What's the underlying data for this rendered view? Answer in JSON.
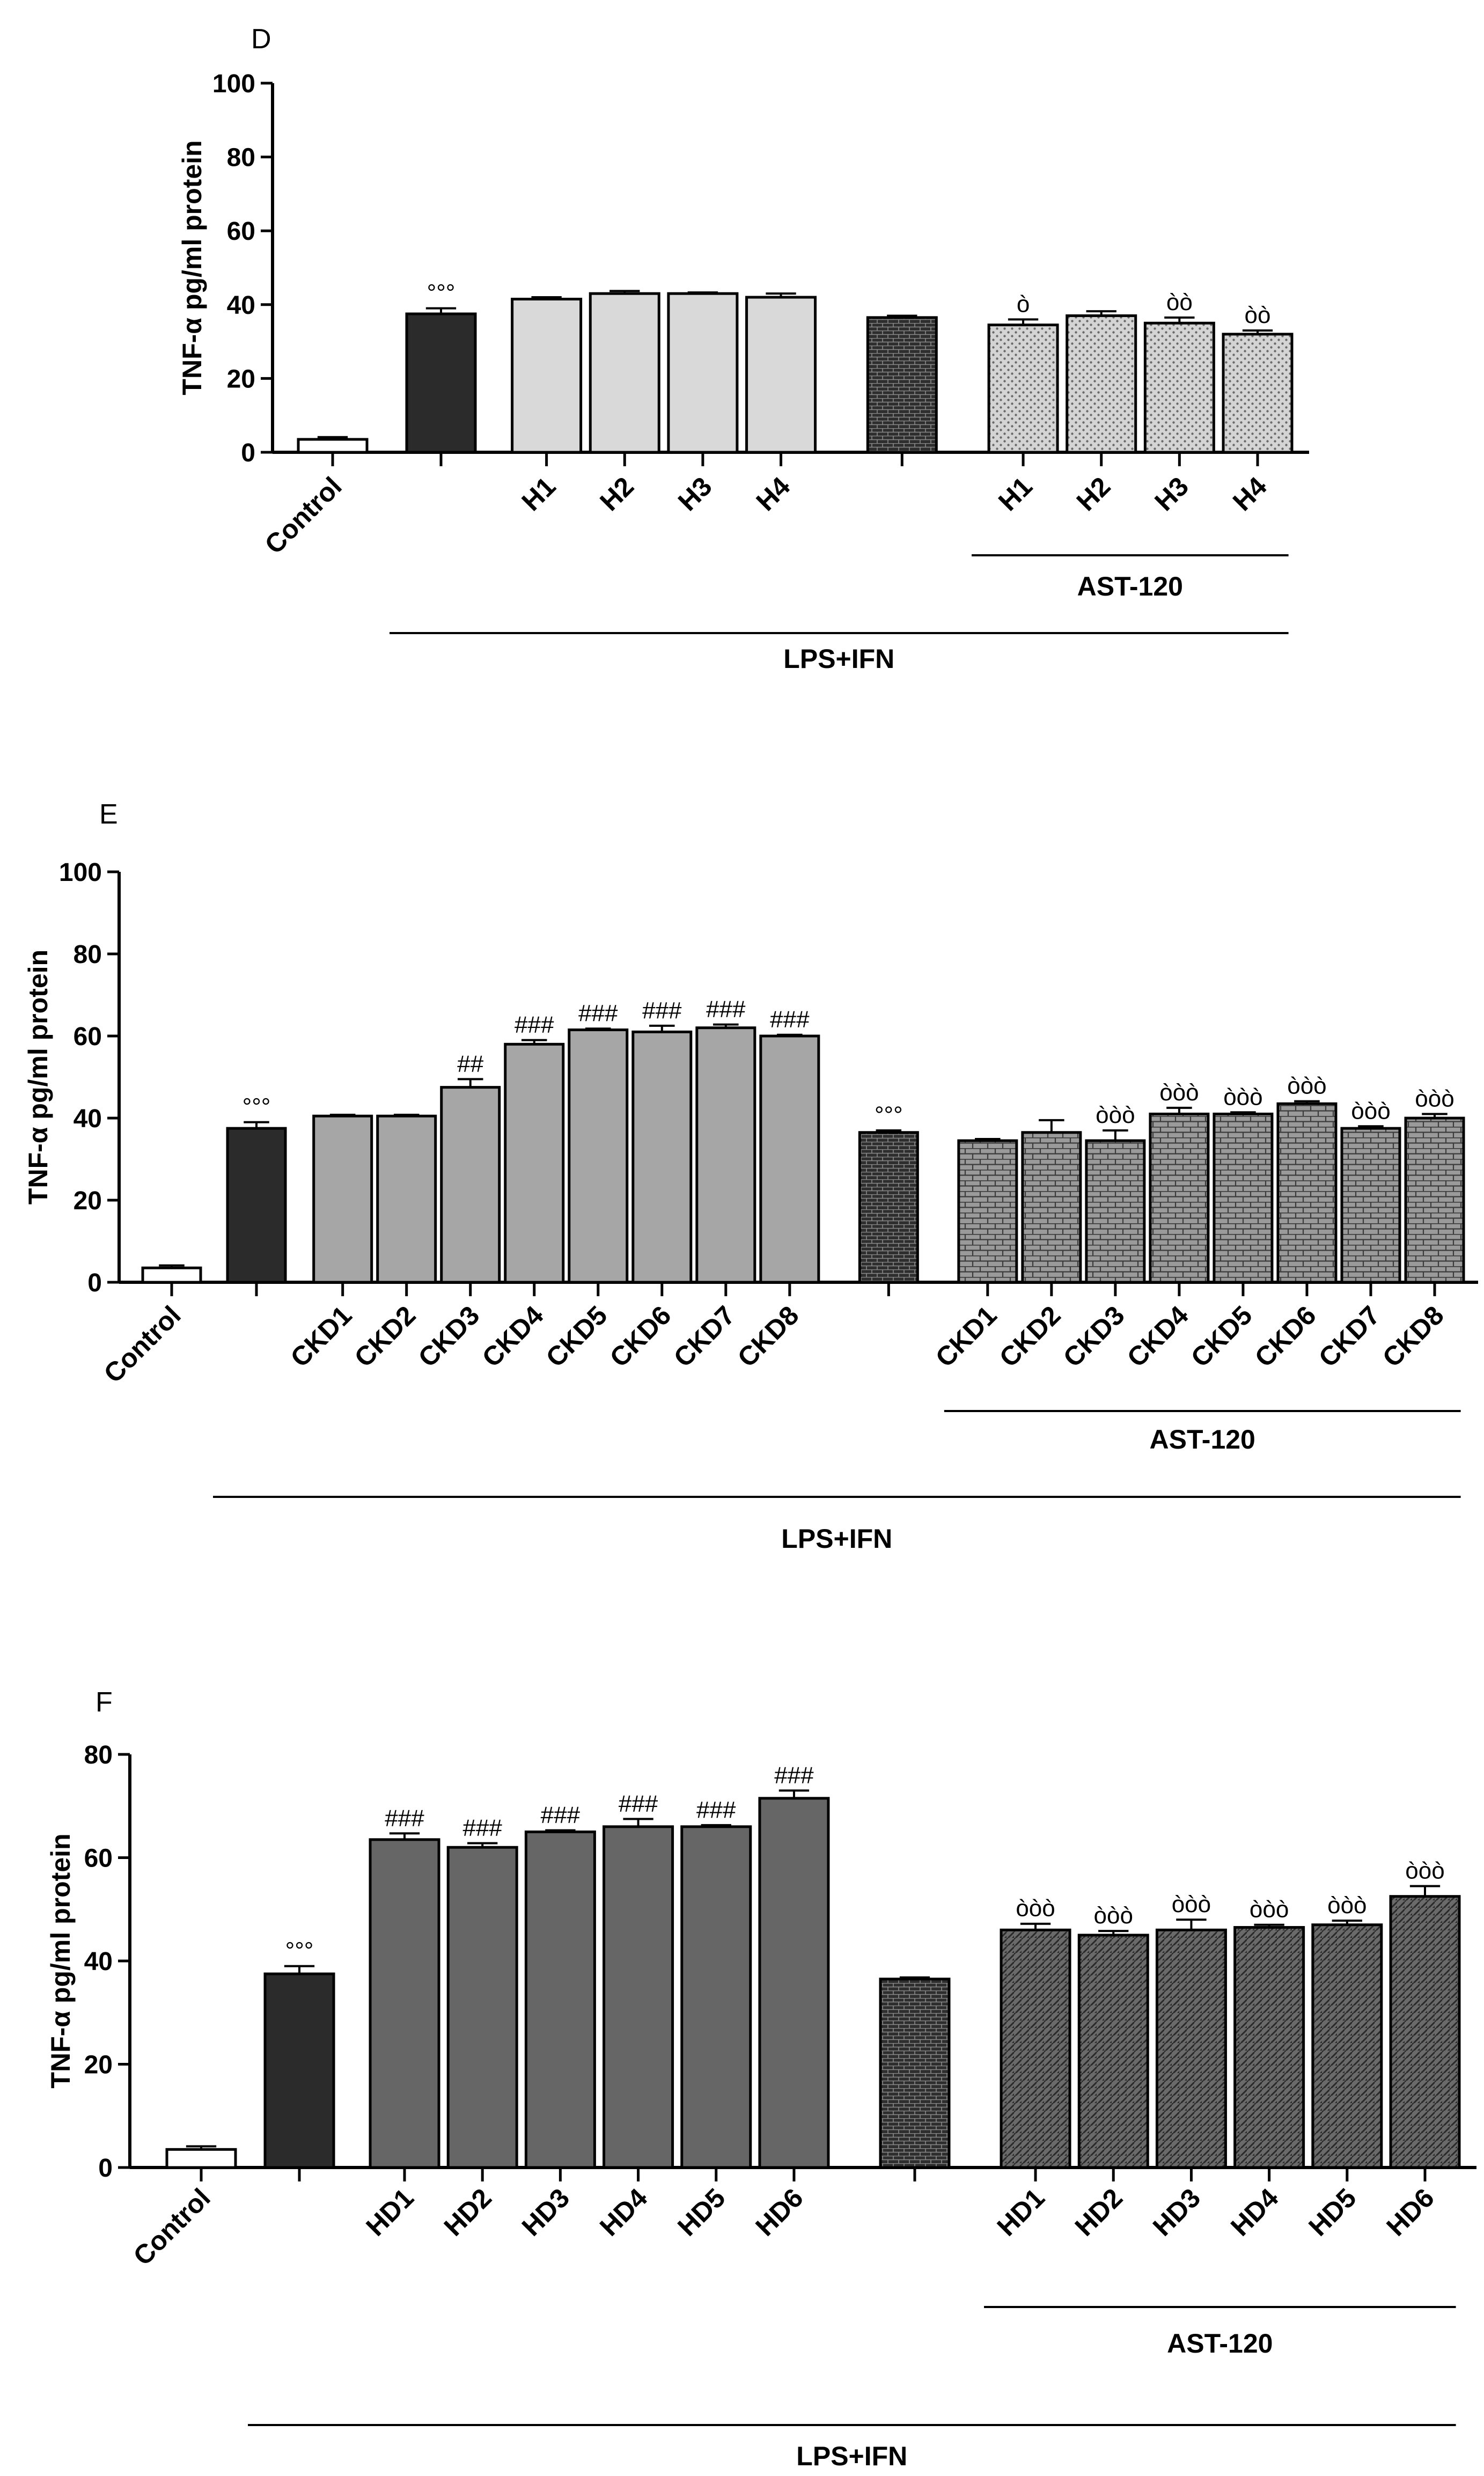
{
  "chart_data": [
    {
      "panel": "D",
      "type": "bar",
      "ylabel": "TNF-α pg/ml protein",
      "ylim": [
        0,
        100
      ],
      "yticks": [
        0,
        20,
        40,
        60,
        80,
        100
      ],
      "bars": [
        {
          "label": "Control",
          "value": 3.5,
          "err": 0.6,
          "style": "white",
          "mark": ""
        },
        {
          "label": "",
          "value": 37.5,
          "err": 1.5,
          "style": "dark",
          "mark": "°°°"
        },
        {
          "label": "H1",
          "value": 41.5,
          "err": 0.5,
          "style": "light",
          "mark": ""
        },
        {
          "label": "H2",
          "value": 43,
          "err": 0.7,
          "style": "light",
          "mark": ""
        },
        {
          "label": "H3",
          "value": 43,
          "err": 0.3,
          "style": "light",
          "mark": ""
        },
        {
          "label": "H4",
          "value": 42,
          "err": 1.0,
          "style": "light",
          "mark": ""
        },
        {
          "label": "",
          "value": 36.5,
          "err": 0.5,
          "style": "dark-pattern",
          "mark": ""
        },
        {
          "label": "H1",
          "value": 34.5,
          "err": 1.5,
          "style": "dots",
          "mark": "ò"
        },
        {
          "label": "H2",
          "value": 37,
          "err": 1.2,
          "style": "dots",
          "mark": ""
        },
        {
          "label": "H3",
          "value": 35,
          "err": 1.5,
          "style": "dots",
          "mark": "òò"
        },
        {
          "label": "H4",
          "value": 32,
          "err": 1.0,
          "style": "dots",
          "mark": "òò"
        }
      ],
      "groups": [
        {
          "label": "AST-120",
          "from": 7,
          "to": 10
        },
        {
          "label": "LPS+IFN",
          "from": 1,
          "to": 10
        }
      ]
    },
    {
      "panel": "E",
      "type": "bar",
      "ylabel": "TNF-α pg/ml protein",
      "ylim": [
        0,
        100
      ],
      "yticks": [
        0,
        20,
        40,
        60,
        80,
        100
      ],
      "bars": [
        {
          "label": "Control",
          "value": 3.5,
          "err": 0.6,
          "style": "white",
          "mark": ""
        },
        {
          "label": "",
          "value": 37.5,
          "err": 1.5,
          "style": "dark",
          "mark": "°°°"
        },
        {
          "label": "CKD1",
          "value": 40.5,
          "err": 0.3,
          "style": "mid",
          "mark": ""
        },
        {
          "label": "CKD2",
          "value": 40.5,
          "err": 0.3,
          "style": "mid",
          "mark": ""
        },
        {
          "label": "CKD3",
          "value": 47.5,
          "err": 2.0,
          "style": "mid",
          "mark": "##"
        },
        {
          "label": "CKD4",
          "value": 58,
          "err": 1.0,
          "style": "mid",
          "mark": "###"
        },
        {
          "label": "CKD5",
          "value": 61.5,
          "err": 0.3,
          "style": "mid",
          "mark": "###"
        },
        {
          "label": "CKD6",
          "value": 61,
          "err": 1.5,
          "style": "mid",
          "mark": "###"
        },
        {
          "label": "CKD7",
          "value": 62,
          "err": 0.8,
          "style": "mid",
          "mark": "###"
        },
        {
          "label": "CKD8",
          "value": 60,
          "err": 0.3,
          "style": "mid",
          "mark": "###"
        },
        {
          "label": "",
          "value": 36.5,
          "err": 0.5,
          "style": "dark-pattern",
          "mark": "°°°"
        },
        {
          "label": "CKD1",
          "value": 34.5,
          "err": 0.4,
          "style": "brick",
          "mark": ""
        },
        {
          "label": "CKD2",
          "value": 36.5,
          "err": 3.0,
          "style": "brick",
          "mark": ""
        },
        {
          "label": "CKD3",
          "value": 34.5,
          "err": 2.5,
          "style": "brick",
          "mark": "òòò"
        },
        {
          "label": "CKD4",
          "value": 41,
          "err": 1.5,
          "style": "brick",
          "mark": "òòò"
        },
        {
          "label": "CKD5",
          "value": 41,
          "err": 0.4,
          "style": "brick",
          "mark": "òòò"
        },
        {
          "label": "CKD6",
          "value": 43.5,
          "err": 0.6,
          "style": "brick",
          "mark": "òòò"
        },
        {
          "label": "CKD7",
          "value": 37.5,
          "err": 0.5,
          "style": "brick",
          "mark": "òòò"
        },
        {
          "label": "CKD8",
          "value": 40,
          "err": 1.0,
          "style": "brick",
          "mark": "òòò"
        }
      ],
      "groups": [
        {
          "label": "AST-120",
          "from": 11,
          "to": 18
        },
        {
          "label": "LPS+IFN",
          "from": 1,
          "to": 18
        }
      ]
    },
    {
      "panel": "F",
      "type": "bar",
      "ylabel": "TNF-α pg/ml protein",
      "ylim": [
        0,
        80
      ],
      "yticks": [
        0,
        20,
        40,
        60,
        80
      ],
      "bars": [
        {
          "label": "Control",
          "value": 3.5,
          "err": 0.6,
          "style": "white",
          "mark": ""
        },
        {
          "label": "",
          "value": 37.5,
          "err": 1.5,
          "style": "dark",
          "mark": "°°°"
        },
        {
          "label": "HD1",
          "value": 63.5,
          "err": 1.2,
          "style": "grey",
          "mark": "###"
        },
        {
          "label": "HD2",
          "value": 62,
          "err": 0.8,
          "style": "grey",
          "mark": "###"
        },
        {
          "label": "HD3",
          "value": 65,
          "err": 0.3,
          "style": "grey",
          "mark": "###"
        },
        {
          "label": "HD4",
          "value": 66,
          "err": 1.5,
          "style": "grey",
          "mark": "###"
        },
        {
          "label": "HD5",
          "value": 66,
          "err": 0.3,
          "style": "grey",
          "mark": "###"
        },
        {
          "label": "HD6",
          "value": 71.5,
          "err": 1.5,
          "style": "grey",
          "mark": "###"
        },
        {
          "label": "",
          "value": 36.5,
          "err": 0.3,
          "style": "dark-pattern",
          "mark": ""
        },
        {
          "label": "HD1",
          "value": 46,
          "err": 1.2,
          "style": "diag",
          "mark": "òòò"
        },
        {
          "label": "HD2",
          "value": 45,
          "err": 0.8,
          "style": "diag",
          "mark": "òòò"
        },
        {
          "label": "HD3",
          "value": 46,
          "err": 2.0,
          "style": "diag",
          "mark": "òòò"
        },
        {
          "label": "HD4",
          "value": 46.5,
          "err": 0.5,
          "style": "diag",
          "mark": "òòò"
        },
        {
          "label": "HD5",
          "value": 47,
          "err": 0.8,
          "style": "diag",
          "mark": "òòò"
        },
        {
          "label": "HD6",
          "value": 52.5,
          "err": 2.0,
          "style": "diag",
          "mark": "òòò"
        }
      ],
      "groups": [
        {
          "label": "AST-120",
          "from": 9,
          "to": 14
        },
        {
          "label": "LPS+IFN",
          "from": 1,
          "to": 14
        }
      ]
    }
  ]
}
